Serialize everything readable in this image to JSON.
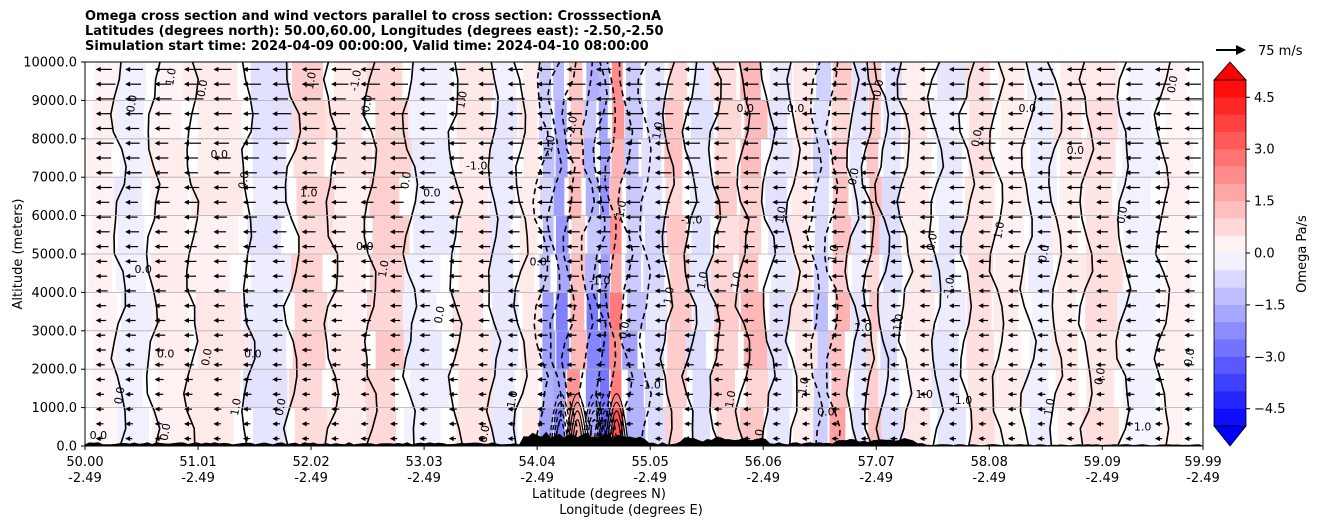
{
  "chart_data": {
    "type": "heatmap",
    "title_lines": [
      "Omega cross section and wind vectors parallel to cross section: CrosssectionA",
      "Latitudes (degrees north): 50.00,60.00, Longitudes (degrees east): -2.50,-2.50",
      "Simulation start time: 2024-04-09 00:00:00, Valid time: 2024-04-10 08:00:00"
    ],
    "ylabel": "Altitude (meters)",
    "xlabel_lines": [
      "Latitude (degrees N)",
      "Longitude (degrees E)"
    ],
    "ylim": [
      0,
      10000
    ],
    "yticks": [
      "0.0",
      "1000.0",
      "2000.0",
      "3000.0",
      "4000.0",
      "5000.0",
      "6000.0",
      "7000.0",
      "8000.0",
      "9000.0",
      "10000.0"
    ],
    "ytick_values": [
      0,
      1000,
      2000,
      3000,
      4000,
      5000,
      6000,
      7000,
      8000,
      9000,
      10000
    ],
    "xlim": [
      50.0,
      59.99
    ],
    "xticks_lat": [
      "50.00",
      "51.01",
      "52.02",
      "53.03",
      "54.04",
      "55.05",
      "56.06",
      "57.07",
      "58.08",
      "59.09",
      "59.99"
    ],
    "xtick_values": [
      50.0,
      51.01,
      52.02,
      53.03,
      54.04,
      55.05,
      56.06,
      57.07,
      58.08,
      59.09,
      59.99
    ],
    "xticks_lon": [
      "-2.49",
      "-2.49",
      "-2.49",
      "-2.49",
      "-2.49",
      "-2.49",
      "-2.49",
      "-2.49",
      "-2.49",
      "-2.49",
      "-2.49"
    ],
    "grid": true,
    "colorbar": {
      "label": "Omega Pa/s",
      "range": [
        -5.0,
        5.0
      ],
      "ticks": [
        "4.5",
        "3.0",
        "1.5",
        "0.0",
        "−1.5",
        "−3.0",
        "−4.5"
      ],
      "tick_values": [
        4.5,
        3.0,
        1.5,
        0.0,
        -1.5,
        -3.0,
        -4.5
      ],
      "low_color": "#0000ff",
      "high_color": "#ff0000",
      "mid_color": "#ffffff"
    },
    "vector_key": "75 m/s",
    "contour_levels": [
      -2.0,
      -1.0,
      0.0,
      1.0,
      2.0
    ],
    "omega_bands": [
      {
        "lat": 50.1,
        "value": 0.3
      },
      {
        "lat": 50.5,
        "value": -0.4
      },
      {
        "lat": 50.7,
        "value": 0.4
      },
      {
        "lat": 51.2,
        "value": 0.5
      },
      {
        "lat": 51.7,
        "value": -0.6
      },
      {
        "lat": 52.0,
        "value": 1.0
      },
      {
        "lat": 52.4,
        "value": 0.5
      },
      {
        "lat": 52.7,
        "value": 1.3
      },
      {
        "lat": 53.1,
        "value": -0.4
      },
      {
        "lat": 53.5,
        "value": 0.6
      },
      {
        "lat": 53.8,
        "value": -0.5
      },
      {
        "lat": 54.0,
        "value": 0.5
      },
      {
        "lat": 54.15,
        "value": -2.0
      },
      {
        "lat": 54.25,
        "value": -3.2
      },
      {
        "lat": 54.4,
        "value": 2.5
      },
      {
        "lat": 54.55,
        "value": -2.6
      },
      {
        "lat": 54.65,
        "value": -3.4
      },
      {
        "lat": 54.75,
        "value": 3.6
      },
      {
        "lat": 54.9,
        "value": -1.8
      },
      {
        "lat": 55.1,
        "value": -0.8
      },
      {
        "lat": 55.3,
        "value": 1.3
      },
      {
        "lat": 55.5,
        "value": -0.7
      },
      {
        "lat": 55.75,
        "value": 1.0
      },
      {
        "lat": 56.0,
        "value": 1.5
      },
      {
        "lat": 56.2,
        "value": -0.6
      },
      {
        "lat": 56.45,
        "value": 0.6
      },
      {
        "lat": 56.6,
        "value": -1.6
      },
      {
        "lat": 56.75,
        "value": 1.9
      },
      {
        "lat": 56.95,
        "value": -0.6
      },
      {
        "lat": 57.05,
        "value": 1.3
      },
      {
        "lat": 57.2,
        "value": -0.7
      },
      {
        "lat": 57.45,
        "value": 0.5
      },
      {
        "lat": 57.75,
        "value": -0.5
      },
      {
        "lat": 58.0,
        "value": 0.7
      },
      {
        "lat": 58.3,
        "value": 0.4
      },
      {
        "lat": 58.55,
        "value": -0.4
      },
      {
        "lat": 58.8,
        "value": 0.5
      },
      {
        "lat": 59.1,
        "value": 0.7
      },
      {
        "lat": 59.45,
        "value": -0.3
      },
      {
        "lat": 59.8,
        "value": 0.3
      }
    ],
    "contour_labels": [
      {
        "lat": 50.12,
        "alt": 180,
        "text": "0.0"
      },
      {
        "lat": 50.34,
        "alt": 1300,
        "text": "0.0"
      },
      {
        "lat": 50.45,
        "alt": 8900,
        "text": "0.0"
      },
      {
        "lat": 50.52,
        "alt": 4500,
        "text": "0.0"
      },
      {
        "lat": 50.75,
        "alt": 350,
        "text": "0.0"
      },
      {
        "lat": 50.8,
        "alt": 9600,
        "text": "1.0"
      },
      {
        "lat": 50.72,
        "alt": 2300,
        "text": "0.0"
      },
      {
        "lat": 51.08,
        "alt": 9300,
        "text": "0.0"
      },
      {
        "lat": 51.12,
        "alt": 2300,
        "text": "0.0"
      },
      {
        "lat": 51.2,
        "alt": 7500,
        "text": "0.0"
      },
      {
        "lat": 51.38,
        "alt": 1000,
        "text": "1.0"
      },
      {
        "lat": 51.45,
        "alt": 6900,
        "text": "0.0"
      },
      {
        "lat": 51.5,
        "alt": 2300,
        "text": "0.0"
      },
      {
        "lat": 51.78,
        "alt": 1000,
        "text": "0.0"
      },
      {
        "lat": 52.05,
        "alt": 9500,
        "text": "1.0"
      },
      {
        "lat": 52.0,
        "alt": 6500,
        "text": "1.0"
      },
      {
        "lat": 52.45,
        "alt": 9500,
        "text": "-1.0"
      },
      {
        "lat": 52.55,
        "alt": 8900,
        "text": "0.0"
      },
      {
        "lat": 52.5,
        "alt": 5100,
        "text": "0.0"
      },
      {
        "lat": 52.7,
        "alt": 4600,
        "text": "1.0"
      },
      {
        "lat": 52.9,
        "alt": 6900,
        "text": "0.0"
      },
      {
        "lat": 53.1,
        "alt": 6500,
        "text": "0.0"
      },
      {
        "lat": 53.2,
        "alt": 3400,
        "text": "0.0"
      },
      {
        "lat": 53.4,
        "alt": 9000,
        "text": "1.0"
      },
      {
        "lat": 53.5,
        "alt": 7200,
        "text": "-1.0"
      },
      {
        "lat": 53.6,
        "alt": 300,
        "text": "0.0"
      },
      {
        "lat": 53.85,
        "alt": 1200,
        "text": "1.0"
      },
      {
        "lat": 54.05,
        "alt": 4700,
        "text": "0.0"
      },
      {
        "lat": 54.18,
        "alt": 7800,
        "text": "-1.0"
      },
      {
        "lat": 54.38,
        "alt": 8300,
        "text": "-2.0"
      },
      {
        "lat": 54.6,
        "alt": 4200,
        "text": "-1.0"
      },
      {
        "lat": 54.82,
        "alt": 6100,
        "text": "-1.0"
      },
      {
        "lat": 54.85,
        "alt": 3000,
        "text": "0.0"
      },
      {
        "lat": 55.05,
        "alt": 1500,
        "text": "-1.0"
      },
      {
        "lat": 55.15,
        "alt": 8200,
        "text": "1.0"
      },
      {
        "lat": 55.25,
        "alt": 3900,
        "text": "1.0"
      },
      {
        "lat": 55.42,
        "alt": 5800,
        "text": "-1.0"
      },
      {
        "lat": 55.55,
        "alt": 4300,
        "text": "1.0"
      },
      {
        "lat": 55.85,
        "alt": 4300,
        "text": "1.0"
      },
      {
        "lat": 55.9,
        "alt": 8700,
        "text": "0.0"
      },
      {
        "lat": 55.8,
        "alt": 1200,
        "text": "1.0"
      },
      {
        "lat": 56.05,
        "alt": 200,
        "text": "0.0"
      },
      {
        "lat": 56.35,
        "alt": 8700,
        "text": "0.0"
      },
      {
        "lat": 56.25,
        "alt": 6000,
        "text": "1.0"
      },
      {
        "lat": 56.45,
        "alt": 1500,
        "text": "-1.0"
      },
      {
        "lat": 56.62,
        "alt": 800,
        "text": "0.0"
      },
      {
        "lat": 56.72,
        "alt": 5000,
        "text": "1.0"
      },
      {
        "lat": 56.9,
        "alt": 7000,
        "text": "0.0"
      },
      {
        "lat": 56.95,
        "alt": 3000,
        "text": "1.0"
      },
      {
        "lat": 57.12,
        "alt": 9300,
        "text": "0.0"
      },
      {
        "lat": 57.3,
        "alt": 3200,
        "text": "1.0"
      },
      {
        "lat": 57.5,
        "alt": 1250,
        "text": "1.0"
      },
      {
        "lat": 57.6,
        "alt": 5300,
        "text": "0.0"
      },
      {
        "lat": 57.75,
        "alt": 4100,
        "text": "-1.0"
      },
      {
        "lat": 57.85,
        "alt": 1100,
        "text": "1.0"
      },
      {
        "lat": 58.0,
        "alt": 8000,
        "text": "0.0"
      },
      {
        "lat": 58.2,
        "alt": 5600,
        "text": "1.0"
      },
      {
        "lat": 58.42,
        "alt": 8700,
        "text": "0.0"
      },
      {
        "lat": 58.6,
        "alt": 5000,
        "text": "0.0"
      },
      {
        "lat": 58.65,
        "alt": 1000,
        "text": "1.0"
      },
      {
        "lat": 58.85,
        "alt": 7600,
        "text": "0.0"
      },
      {
        "lat": 59.1,
        "alt": 1800,
        "text": "0.0"
      },
      {
        "lat": 59.3,
        "alt": 6000,
        "text": "0.0"
      },
      {
        "lat": 59.45,
        "alt": 400,
        "text": "1.0"
      },
      {
        "lat": 59.75,
        "alt": 9400,
        "text": "0.0"
      },
      {
        "lat": 59.9,
        "alt": 2300,
        "text": "0.0"
      }
    ]
  }
}
